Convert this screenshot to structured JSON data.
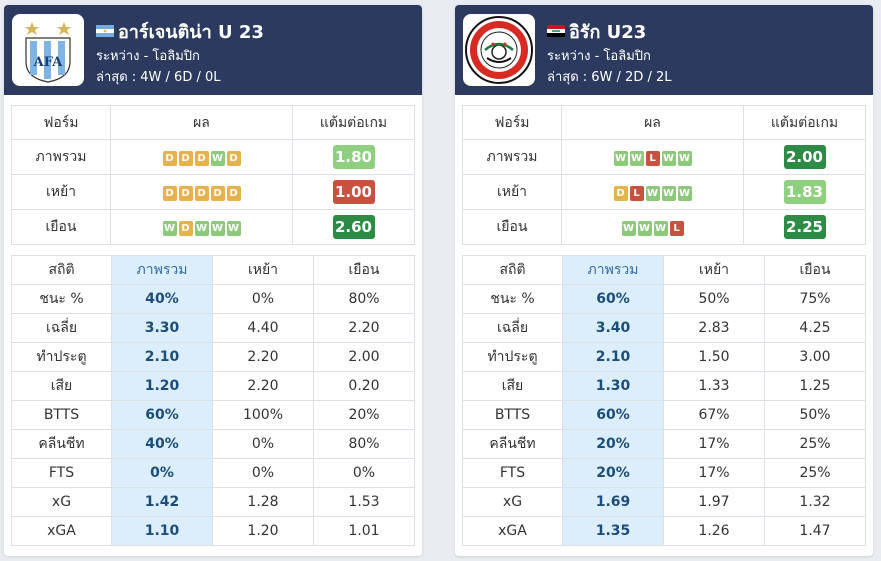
{
  "left": {
    "team_name": "อาร์เจนติน่า U 23",
    "flag_icon": "argentina-flag-icon",
    "competition": "ระหว่าง - โอลิมปิก",
    "recent": "ล่าสุด : 4W / 6D / 0L",
    "form_headers": [
      "ฟอร์ม",
      "ผล",
      "แต้มต่อเกม"
    ],
    "form_rows": [
      {
        "label": "ภาพรวม",
        "results": [
          "D",
          "D",
          "D",
          "W",
          "D"
        ],
        "ppg": "1.80",
        "ppg_color": "#8fcf80"
      },
      {
        "label": "เหย้า",
        "results": [
          "D",
          "D",
          "D",
          "D",
          "D"
        ],
        "ppg": "1.00",
        "ppg_color": "#c9513f"
      },
      {
        "label": "เยือน",
        "results": [
          "W",
          "D",
          "W",
          "W",
          "W"
        ],
        "ppg": "2.60",
        "ppg_color": "#2e8b45"
      }
    ],
    "stats_headers": [
      "สถิติ",
      "ภาพรวม",
      "เหย้า",
      "เยือน"
    ],
    "stats_rows": [
      [
        "ชนะ %",
        "40%",
        "0%",
        "80%"
      ],
      [
        "เฉลี่ย",
        "3.30",
        "4.40",
        "2.20"
      ],
      [
        "ทำประตู",
        "2.10",
        "2.20",
        "2.00"
      ],
      [
        "เสีย",
        "1.20",
        "2.20",
        "0.20"
      ],
      [
        "BTTS",
        "60%",
        "100%",
        "20%"
      ],
      [
        "คลีนชีท",
        "40%",
        "0%",
        "80%"
      ],
      [
        "FTS",
        "0%",
        "0%",
        "0%"
      ],
      [
        "xG",
        "1.42",
        "1.28",
        "1.53"
      ],
      [
        "xGA",
        "1.10",
        "1.20",
        "1.01"
      ]
    ]
  },
  "right": {
    "team_name": "อิรัก U23",
    "flag_icon": "iraq-flag-icon",
    "competition": "ระหว่าง - โอลิมปิก",
    "recent": "ล่าสุด : 6W / 2D / 2L",
    "form_headers": [
      "ฟอร์ม",
      "ผล",
      "แต้มต่อเกม"
    ],
    "form_rows": [
      {
        "label": "ภาพรวม",
        "results": [
          "W",
          "W",
          "L",
          "W",
          "W"
        ],
        "ppg": "2.00",
        "ppg_color": "#2e8b45"
      },
      {
        "label": "เหย้า",
        "results": [
          "D",
          "L",
          "W",
          "W",
          "W"
        ],
        "ppg": "1.83",
        "ppg_color": "#8fcf80"
      },
      {
        "label": "เยือน",
        "results": [
          "W",
          "W",
          "W",
          "L"
        ],
        "ppg": "2.25",
        "ppg_color": "#2e8b45"
      }
    ],
    "stats_headers": [
      "สถิติ",
      "ภาพรวม",
      "เหย้า",
      "เยือน"
    ],
    "stats_rows": [
      [
        "ชนะ %",
        "60%",
        "50%",
        "75%"
      ],
      [
        "เฉลี่ย",
        "3.40",
        "2.83",
        "4.25"
      ],
      [
        "ทำประตู",
        "2.10",
        "1.50",
        "3.00"
      ],
      [
        "เสีย",
        "1.30",
        "1.33",
        "1.25"
      ],
      [
        "BTTS",
        "60%",
        "67%",
        "50%"
      ],
      [
        "คลีนชีท",
        "20%",
        "17%",
        "25%"
      ],
      [
        "FTS",
        "20%",
        "17%",
        "25%"
      ],
      [
        "xG",
        "1.69",
        "1.97",
        "1.32"
      ],
      [
        "xGA",
        "1.35",
        "1.26",
        "1.47"
      ]
    ]
  }
}
